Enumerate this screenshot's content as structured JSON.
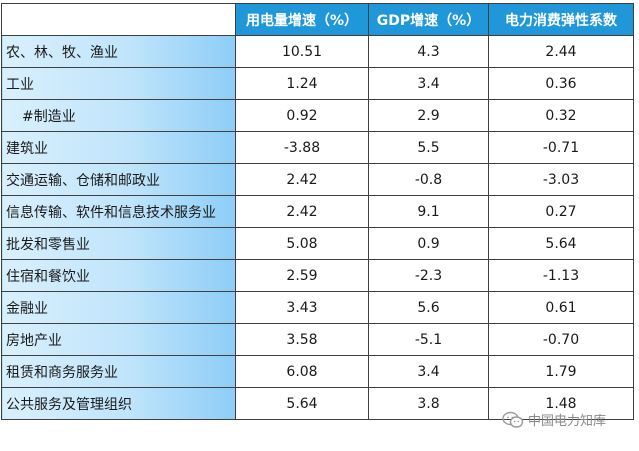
{
  "table": {
    "headers": [
      "",
      "用电量增速（%）",
      "GDP增速（%）",
      "电力消费弹性系数"
    ],
    "rows": [
      {
        "label": "农、林、牧、渔业",
        "power_growth": "10.51",
        "gdp_growth": "4.3",
        "elasticity": "2.44"
      },
      {
        "label": "工业",
        "power_growth": "1.24",
        "gdp_growth": "3.4",
        "elasticity": "0.36"
      },
      {
        "label": "#制造业",
        "power_growth": "0.92",
        "gdp_growth": "2.9",
        "elasticity": "0.32"
      },
      {
        "label": "建筑业",
        "power_growth": "-3.88",
        "gdp_growth": "5.5",
        "elasticity": "-0.71"
      },
      {
        "label": "交通运输、仓储和邮政业",
        "power_growth": "2.42",
        "gdp_growth": "-0.8",
        "elasticity": "-3.03"
      },
      {
        "label": "信息传输、软件和信息技术服务业",
        "power_growth": "2.42",
        "gdp_growth": "9.1",
        "elasticity": "0.27"
      },
      {
        "label": "批发和零售业",
        "power_growth": "5.08",
        "gdp_growth": "0.9",
        "elasticity": "5.64"
      },
      {
        "label": "住宿和餐饮业",
        "power_growth": "2.59",
        "gdp_growth": "-2.3",
        "elasticity": "-1.13"
      },
      {
        "label": "金融业",
        "power_growth": "3.43",
        "gdp_growth": "5.6",
        "elasticity": "0.61"
      },
      {
        "label": "房地产业",
        "power_growth": "3.58",
        "gdp_growth": "-5.1",
        "elasticity": "-0.70"
      },
      {
        "label": "租赁和商务服务业",
        "power_growth": "6.08",
        "gdp_growth": "3.4",
        "elasticity": "1.79"
      },
      {
        "label": "公共服务及管理组织",
        "power_growth": "5.64",
        "gdp_growth": "3.8",
        "elasticity": "1.48"
      }
    ]
  },
  "watermark": {
    "text": "中国电力知库",
    "icon": "wechat-icon"
  },
  "colors": {
    "header_bg": "#1f97d8",
    "label_gradient_start": "#d9f0fd",
    "label_gradient_end": "#8dcdf7",
    "border": "#404040"
  }
}
